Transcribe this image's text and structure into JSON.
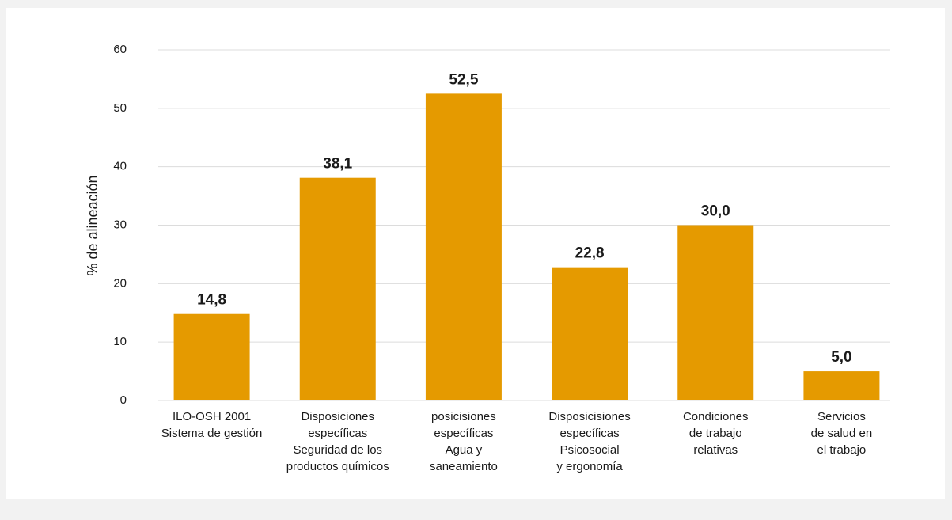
{
  "chart_data": {
    "type": "bar",
    "y_label": "% de alineación",
    "categories": [
      [
        "ILO-OSH 2001",
        "Sistema de gestión"
      ],
      [
        "Disposiciones",
        "específicas",
        "Seguridad de los",
        "productos químicos"
      ],
      [
        "posicisiones",
        "específicas",
        "Agua y",
        "saneamiento"
      ],
      [
        "Disposicisiones",
        "específicas",
        "Psicosocial",
        "y ergonomía"
      ],
      [
        "Condiciones",
        "de trabajo",
        "relativas"
      ],
      [
        "Servicios",
        "de salud en",
        "el trabajo"
      ]
    ],
    "values": [
      14.8,
      38.1,
      52.5,
      22.8,
      30.0,
      5.0
    ],
    "value_labels": [
      "14,8",
      "38,1",
      "52,5",
      "22,8",
      "30,0",
      "5,0"
    ],
    "color": "#e59a00",
    "ylim": [
      0,
      60
    ],
    "yticks": [
      0,
      10,
      20,
      30,
      40,
      50,
      60
    ],
    "grid": true
  }
}
